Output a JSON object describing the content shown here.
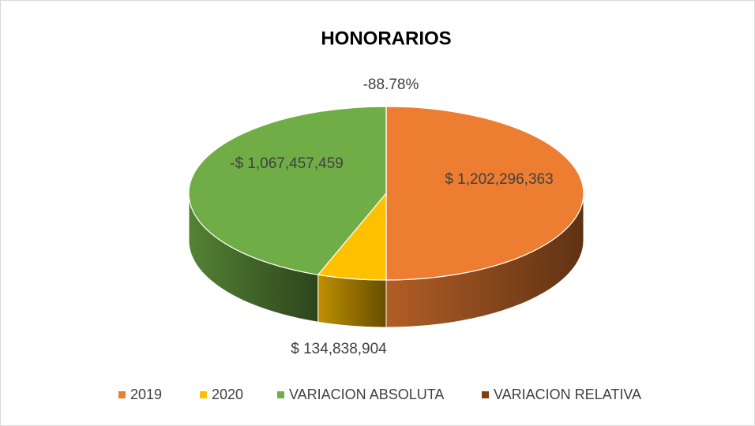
{
  "chart_data": {
    "type": "pie3d",
    "title": "HONORARIOS",
    "categories": [
      "2019",
      "2020",
      "VARIACION ABSOLUTA",
      "VARIACION RELATIVA"
    ],
    "values": [
      1202296363,
      134838904,
      -1067457459,
      -88.78
    ],
    "value_labels": [
      "$ 1,202,296,363",
      "$ 134,838,904",
      "-$ 1,067,457,459",
      "-88.78%"
    ],
    "colors": [
      "#ED7D31",
      "#FFC000",
      "#70AD47",
      "#843C0C"
    ],
    "legend": "bottom"
  }
}
